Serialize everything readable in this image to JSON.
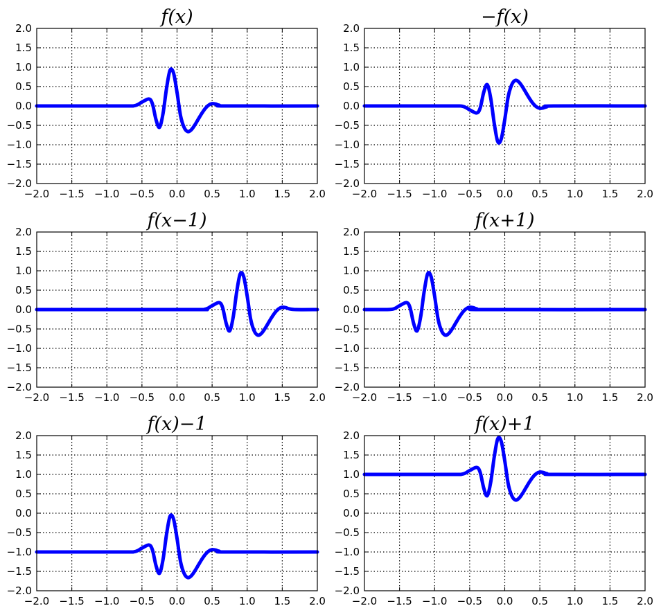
{
  "colors": {
    "series": "#0000ff",
    "axes": "#000000",
    "background": "#ffffff"
  },
  "chart_data": [
    {
      "type": "line",
      "title": "f(x)",
      "xlabel": "",
      "ylabel": "",
      "xlim": [
        -2.0,
        2.0
      ],
      "ylim": [
        -2.0,
        2.0
      ],
      "xticks": [
        "−2.0",
        "−1.5",
        "−1.0",
        "−0.5",
        "0.0",
        "0.5",
        "1.0",
        "1.5",
        "2.0"
      ],
      "yticks": [
        "2.0",
        "1.5",
        "1.0",
        "0.5",
        "0.0",
        "−0.5",
        "−1.0",
        "−1.5",
        "−2.0"
      ],
      "grid": true,
      "legend": "none",
      "series": [
        {
          "x": [
            -2.0,
            -0.8,
            -0.6,
            -0.5,
            -0.4,
            -0.35,
            -0.3,
            -0.25,
            -0.2,
            -0.15,
            -0.1,
            -0.05,
            0.0,
            0.05,
            0.1,
            0.15,
            0.2,
            0.25,
            0.3,
            0.35,
            0.4,
            0.45,
            0.5,
            0.55,
            0.6,
            0.7,
            2.0
          ],
          "y": [
            0.0,
            0.0,
            0.01,
            0.1,
            0.18,
            0.05,
            -0.35,
            -0.55,
            -0.2,
            0.45,
            0.92,
            0.85,
            0.35,
            -0.25,
            -0.55,
            -0.66,
            -0.62,
            -0.5,
            -0.35,
            -0.2,
            -0.07,
            0.02,
            0.06,
            0.05,
            0.02,
            0.0,
            0.0
          ]
        }
      ]
    },
    {
      "type": "line",
      "title": "−f(x)",
      "xlabel": "",
      "ylabel": "",
      "xlim": [
        -2.0,
        2.0
      ],
      "ylim": [
        -2.0,
        2.0
      ],
      "xticks": [
        "−2.0",
        "−1.5",
        "−1.0",
        "−0.5",
        "0.0",
        "0.5",
        "1.0",
        "1.5",
        "2.0"
      ],
      "yticks": [
        "2.0",
        "1.5",
        "1.0",
        "0.5",
        "0.0",
        "−0.5",
        "−1.0",
        "−1.5",
        "−2.0"
      ],
      "grid": true,
      "legend": "none",
      "series": [
        {
          "x": [
            -2.0,
            -0.8,
            -0.6,
            -0.5,
            -0.4,
            -0.35,
            -0.3,
            -0.25,
            -0.2,
            -0.15,
            -0.1,
            -0.05,
            0.0,
            0.05,
            0.1,
            0.15,
            0.2,
            0.25,
            0.3,
            0.35,
            0.4,
            0.45,
            0.5,
            0.55,
            0.6,
            0.7,
            2.0
          ],
          "y": [
            0.0,
            0.0,
            -0.01,
            -0.1,
            -0.18,
            -0.05,
            0.35,
            0.55,
            0.2,
            -0.45,
            -0.92,
            -0.85,
            -0.35,
            0.25,
            0.55,
            0.66,
            0.62,
            0.5,
            0.35,
            0.2,
            0.07,
            -0.02,
            -0.06,
            -0.05,
            -0.02,
            0.0,
            0.0
          ]
        }
      ]
    },
    {
      "type": "line",
      "title": "f(x−1)",
      "xlabel": "",
      "ylabel": "",
      "xlim": [
        -2.0,
        2.0
      ],
      "ylim": [
        -2.0,
        2.0
      ],
      "xticks": [
        "−2.0",
        "−1.5",
        "−1.0",
        "−0.5",
        "0.0",
        "0.5",
        "1.0",
        "1.5",
        "2.0"
      ],
      "yticks": [
        "2.0",
        "1.5",
        "1.0",
        "0.5",
        "0.0",
        "−0.5",
        "−1.0",
        "−1.5",
        "−2.0"
      ],
      "grid": true,
      "legend": "none",
      "series": [
        {
          "x": [
            -2.0,
            0.2,
            0.4,
            0.5,
            0.6,
            0.65,
            0.7,
            0.75,
            0.8,
            0.85,
            0.9,
            0.95,
            1.0,
            1.05,
            1.1,
            1.15,
            1.2,
            1.25,
            1.3,
            1.35,
            1.4,
            1.45,
            1.5,
            1.55,
            1.6,
            1.7,
            2.0
          ],
          "y": [
            0.0,
            0.0,
            0.01,
            0.1,
            0.18,
            0.05,
            -0.35,
            -0.55,
            -0.2,
            0.45,
            0.92,
            0.85,
            0.35,
            -0.25,
            -0.55,
            -0.66,
            -0.62,
            -0.5,
            -0.35,
            -0.2,
            -0.07,
            0.02,
            0.06,
            0.05,
            0.02,
            0.0,
            0.0
          ]
        }
      ]
    },
    {
      "type": "line",
      "title": "f(x+1)",
      "xlabel": "",
      "ylabel": "",
      "xlim": [
        -2.0,
        2.0
      ],
      "ylim": [
        -2.0,
        2.0
      ],
      "xticks": [
        "−2.0",
        "−1.5",
        "−1.0",
        "−0.5",
        "0.0",
        "0.5",
        "1.0",
        "1.5",
        "2.0"
      ],
      "yticks": [
        "2.0",
        "1.5",
        "1.0",
        "0.5",
        "0.0",
        "−0.5",
        "−1.0",
        "−1.5",
        "−2.0"
      ],
      "grid": true,
      "legend": "none",
      "series": [
        {
          "x": [
            -2.0,
            -1.8,
            -1.6,
            -1.5,
            -1.4,
            -1.35,
            -1.3,
            -1.25,
            -1.2,
            -1.15,
            -1.1,
            -1.05,
            -1.0,
            -0.95,
            -0.9,
            -0.85,
            -0.8,
            -0.75,
            -0.7,
            -0.65,
            -0.6,
            -0.55,
            -0.5,
            -0.45,
            -0.4,
            -0.3,
            2.0
          ],
          "y": [
            0.0,
            0.0,
            0.01,
            0.1,
            0.18,
            0.05,
            -0.35,
            -0.55,
            -0.2,
            0.45,
            0.92,
            0.85,
            0.35,
            -0.25,
            -0.55,
            -0.66,
            -0.62,
            -0.5,
            -0.35,
            -0.2,
            -0.07,
            0.02,
            0.06,
            0.05,
            0.02,
            0.0,
            0.0
          ]
        }
      ]
    },
    {
      "type": "line",
      "title": "f(x)−1",
      "xlabel": "",
      "ylabel": "",
      "xlim": [
        -2.0,
        2.0
      ],
      "ylim": [
        -2.0,
        2.0
      ],
      "xticks": [
        "−2.0",
        "−1.5",
        "−1.0",
        "−0.5",
        "0.0",
        "0.5",
        "1.0",
        "1.5",
        "2.0"
      ],
      "yticks": [
        "2.0",
        "1.5",
        "1.0",
        "0.5",
        "0.0",
        "−0.5",
        "−1.0",
        "−1.5",
        "−2.0"
      ],
      "grid": true,
      "legend": "none",
      "series": [
        {
          "x": [
            -2.0,
            -0.8,
            -0.6,
            -0.5,
            -0.4,
            -0.35,
            -0.3,
            -0.25,
            -0.2,
            -0.15,
            -0.1,
            -0.05,
            0.0,
            0.05,
            0.1,
            0.15,
            0.2,
            0.25,
            0.3,
            0.35,
            0.4,
            0.45,
            0.5,
            0.55,
            0.6,
            0.7,
            2.0
          ],
          "y": [
            -1.0,
            -1.0,
            -0.99,
            -0.9,
            -0.82,
            -0.95,
            -1.35,
            -1.55,
            -1.2,
            -0.55,
            -0.08,
            -0.15,
            -0.65,
            -1.25,
            -1.55,
            -1.66,
            -1.62,
            -1.5,
            -1.35,
            -1.2,
            -1.07,
            -0.98,
            -0.94,
            -0.95,
            -0.98,
            -1.0,
            -1.0
          ]
        }
      ]
    },
    {
      "type": "line",
      "title": "f(x)+1",
      "xlabel": "",
      "ylabel": "",
      "xlim": [
        -2.0,
        2.0
      ],
      "ylim": [
        -2.0,
        2.0
      ],
      "xticks": [
        "−2.0",
        "−1.5",
        "−1.0",
        "−0.5",
        "0.0",
        "0.5",
        "1.0",
        "1.5",
        "2.0"
      ],
      "yticks": [
        "2.0",
        "1.5",
        "1.0",
        "0.5",
        "0.0",
        "−0.5",
        "−1.0",
        "−1.5",
        "−2.0"
      ],
      "grid": true,
      "legend": "none",
      "series": [
        {
          "x": [
            -2.0,
            -0.8,
            -0.6,
            -0.5,
            -0.4,
            -0.35,
            -0.3,
            -0.25,
            -0.2,
            -0.15,
            -0.1,
            -0.05,
            0.0,
            0.05,
            0.1,
            0.15,
            0.2,
            0.25,
            0.3,
            0.35,
            0.4,
            0.45,
            0.5,
            0.55,
            0.6,
            0.7,
            2.0
          ],
          "y": [
            1.0,
            1.0,
            1.01,
            1.1,
            1.18,
            1.05,
            0.65,
            0.45,
            0.8,
            1.45,
            1.92,
            1.85,
            1.35,
            0.75,
            0.45,
            0.34,
            0.38,
            0.5,
            0.65,
            0.8,
            0.93,
            1.02,
            1.06,
            1.05,
            1.02,
            1.0,
            1.0
          ]
        }
      ]
    }
  ]
}
